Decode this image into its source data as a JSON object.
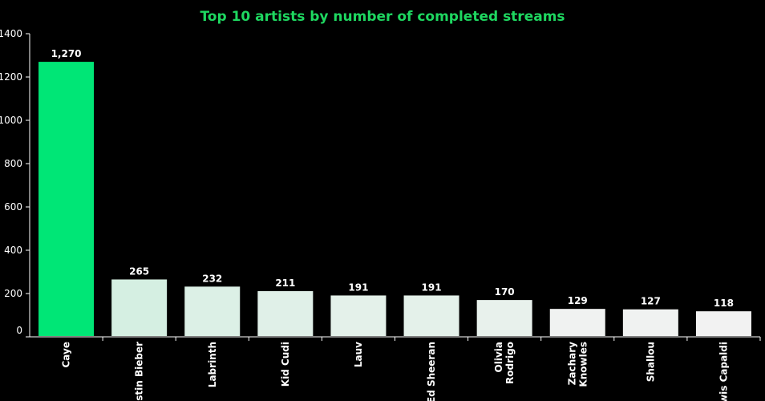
{
  "chart_data": {
    "type": "bar",
    "title": "Top 10 artists by number of completed streams",
    "xlabel": "",
    "ylabel": "",
    "categories": [
      [
        "Caye"
      ],
      [
        "Justin Bieber"
      ],
      [
        "Labrinth"
      ],
      [
        "Kid Cudi"
      ],
      [
        "Lauv"
      ],
      [
        "Ed Sheeran"
      ],
      [
        "Olivia",
        "Rodrigo"
      ],
      [
        "Zachary",
        "Knowles"
      ],
      [
        "Shallou"
      ],
      [
        "Lewis Capaldi"
      ]
    ],
    "values": [
      1270,
      265,
      232,
      211,
      191,
      191,
      170,
      129,
      127,
      118
    ],
    "value_labels": [
      "1,270",
      "265",
      "232",
      "211",
      "191",
      "191",
      "170",
      "129",
      "127",
      "118"
    ],
    "ylim": [
      0,
      1400
    ],
    "yticks": [
      0,
      200,
      400,
      600,
      800,
      1000,
      1200,
      1400
    ],
    "grid": false,
    "colors": {
      "background": "#000000",
      "title": "#1ed760",
      "axis": "#ffffff",
      "highlight_bar": "#00e676",
      "bar_gradient_high": "#d5efe2",
      "bar_gradient_low": "#f2f2f2"
    }
  }
}
